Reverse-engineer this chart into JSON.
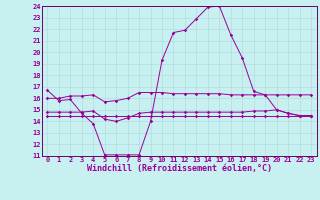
{
  "xlabel": "Windchill (Refroidissement éolien,°C)",
  "background_color": "#c8f0f0",
  "grid_color": "#b0dede",
  "line_color": "#990099",
  "spine_color": "#660066",
  "xlim": [
    -0.5,
    23.5
  ],
  "ylim": [
    11,
    24
  ],
  "xticks": [
    0,
    1,
    2,
    3,
    4,
    5,
    6,
    7,
    8,
    9,
    10,
    11,
    12,
    13,
    14,
    15,
    16,
    17,
    18,
    19,
    20,
    21,
    22,
    23
  ],
  "yticks": [
    11,
    12,
    13,
    14,
    15,
    16,
    17,
    18,
    19,
    20,
    21,
    22,
    23,
    24
  ],
  "line1": [
    16.7,
    15.8,
    15.9,
    14.7,
    13.8,
    11.1,
    11.1,
    11.1,
    11.1,
    14.0,
    19.3,
    21.7,
    21.9,
    22.9,
    23.9,
    24.0,
    21.5,
    19.5,
    16.6,
    16.3,
    15.0,
    14.7,
    14.5,
    14.5
  ],
  "line2": [
    16.0,
    16.0,
    16.2,
    16.2,
    16.3,
    15.7,
    15.8,
    16.0,
    16.5,
    16.5,
    16.5,
    16.4,
    16.4,
    16.4,
    16.4,
    16.4,
    16.3,
    16.3,
    16.3,
    16.3,
    16.3,
    16.3,
    16.3,
    16.3
  ],
  "line3": [
    14.8,
    14.8,
    14.8,
    14.8,
    14.9,
    14.2,
    14.0,
    14.3,
    14.7,
    14.8,
    14.8,
    14.8,
    14.8,
    14.8,
    14.8,
    14.8,
    14.8,
    14.8,
    14.9,
    14.9,
    15.0,
    14.7,
    14.5,
    14.5
  ],
  "line4": [
    14.5,
    14.5,
    14.5,
    14.5,
    14.5,
    14.5,
    14.5,
    14.5,
    14.5,
    14.5,
    14.5,
    14.5,
    14.5,
    14.5,
    14.5,
    14.5,
    14.5,
    14.5,
    14.5,
    14.5,
    14.5,
    14.5,
    14.5,
    14.5
  ],
  "tick_fontsize": 5,
  "xlabel_fontsize": 6,
  "marker_size": 1.8,
  "line_width": 0.7
}
